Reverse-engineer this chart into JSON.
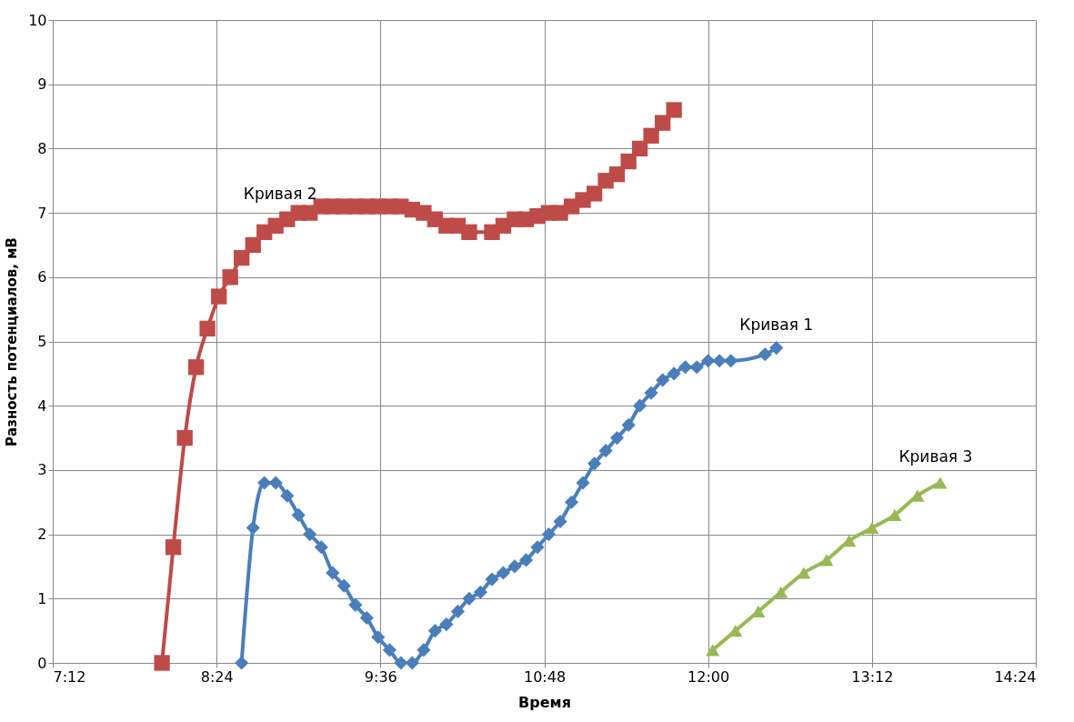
{
  "chart_data": {
    "type": "line",
    "xlabel": "Время",
    "ylabel": "Разность потенциалов, мВ",
    "xlim": [
      7.2,
      14.4
    ],
    "xticks": [
      {
        "value": 7.2,
        "label": "7:12"
      },
      {
        "value": 8.4,
        "label": "8:24"
      },
      {
        "value": 9.6,
        "label": "9:36"
      },
      {
        "value": 10.8,
        "label": "10:48"
      },
      {
        "value": 12,
        "label": "12:00"
      },
      {
        "value": 13.2,
        "label": "13:12"
      },
      {
        "value": 14.4,
        "label": "14:24"
      }
    ],
    "ylim": [
      0,
      10
    ],
    "yticks": [
      0,
      1,
      2,
      3,
      4,
      5,
      6,
      7,
      8,
      9,
      10
    ],
    "grid": true,
    "legend": false,
    "line_style": "solid",
    "series": [
      {
        "name": "Кривая 1",
        "color": "#4a7ebb",
        "marker": "diamond",
        "x": [
          8.583,
          8.667,
          8.75,
          8.833,
          8.917,
          9.0,
          9.083,
          9.167,
          9.25,
          9.333,
          9.417,
          9.5,
          9.583,
          9.667,
          9.75,
          9.833,
          9.917,
          10.0,
          10.083,
          10.167,
          10.25,
          10.333,
          10.417,
          10.5,
          10.583,
          10.667,
          10.75,
          10.833,
          10.917,
          11.0,
          11.083,
          11.167,
          11.25,
          11.333,
          11.417,
          11.5,
          11.583,
          11.667,
          11.75,
          11.833,
          11.917,
          12.0,
          12.083,
          12.167,
          12.417,
          12.5
        ],
        "values": [
          0,
          2.1,
          2.8,
          2.8,
          2.6,
          2.3,
          2.0,
          1.8,
          1.4,
          1.2,
          0.9,
          0.7,
          0.4,
          0.2,
          0,
          0,
          0.2,
          0.5,
          0.6,
          0.8,
          1.0,
          1.1,
          1.3,
          1.4,
          1.5,
          1.6,
          1.8,
          2.0,
          2.2,
          2.5,
          2.8,
          3.1,
          3.3,
          3.5,
          3.7,
          4.0,
          4.2,
          4.4,
          4.5,
          4.6,
          4.6,
          4.7,
          4.7,
          4.7,
          4.8,
          4.9
        ]
      },
      {
        "name": "Кривая 2",
        "color": "#be4b48",
        "marker": "square",
        "x": [
          8.0,
          8.083,
          8.167,
          8.25,
          8.333,
          8.417,
          8.5,
          8.583,
          8.667,
          8.75,
          8.833,
          8.917,
          9.0,
          9.083,
          9.167,
          9.25,
          9.333,
          9.417,
          9.5,
          9.583,
          9.667,
          9.75,
          9.833,
          9.917,
          10.0,
          10.083,
          10.167,
          10.25,
          10.417,
          10.5,
          10.583,
          10.667,
          10.75,
          10.833,
          10.917,
          11.0,
          11.083,
          11.167,
          11.25,
          11.333,
          11.417,
          11.5,
          11.583,
          11.667,
          11.75
        ],
        "values": [
          0,
          1.8,
          3.5,
          4.6,
          5.2,
          5.7,
          6.0,
          6.3,
          6.5,
          6.7,
          6.8,
          6.9,
          7.0,
          7.0,
          7.1,
          7.1,
          7.1,
          7.1,
          7.1,
          7.1,
          7.1,
          7.1,
          7.05,
          7.0,
          6.9,
          6.8,
          6.8,
          6.7,
          6.7,
          6.8,
          6.9,
          6.9,
          6.95,
          7.0,
          7.0,
          7.1,
          7.2,
          7.3,
          7.5,
          7.6,
          7.8,
          8.0,
          8.2,
          8.4,
          8.6
        ]
      },
      {
        "name": "Кривая 3",
        "color": "#98b954",
        "marker": "triangle",
        "x": [
          12.033,
          12.2,
          12.367,
          12.533,
          12.7,
          12.867,
          13.033,
          13.2,
          13.367,
          13.533,
          13.7
        ],
        "values": [
          0.2,
          0.5,
          0.8,
          1.1,
          1.4,
          1.6,
          1.9,
          2.1,
          2.3,
          2.6,
          2.8
        ]
      }
    ]
  }
}
